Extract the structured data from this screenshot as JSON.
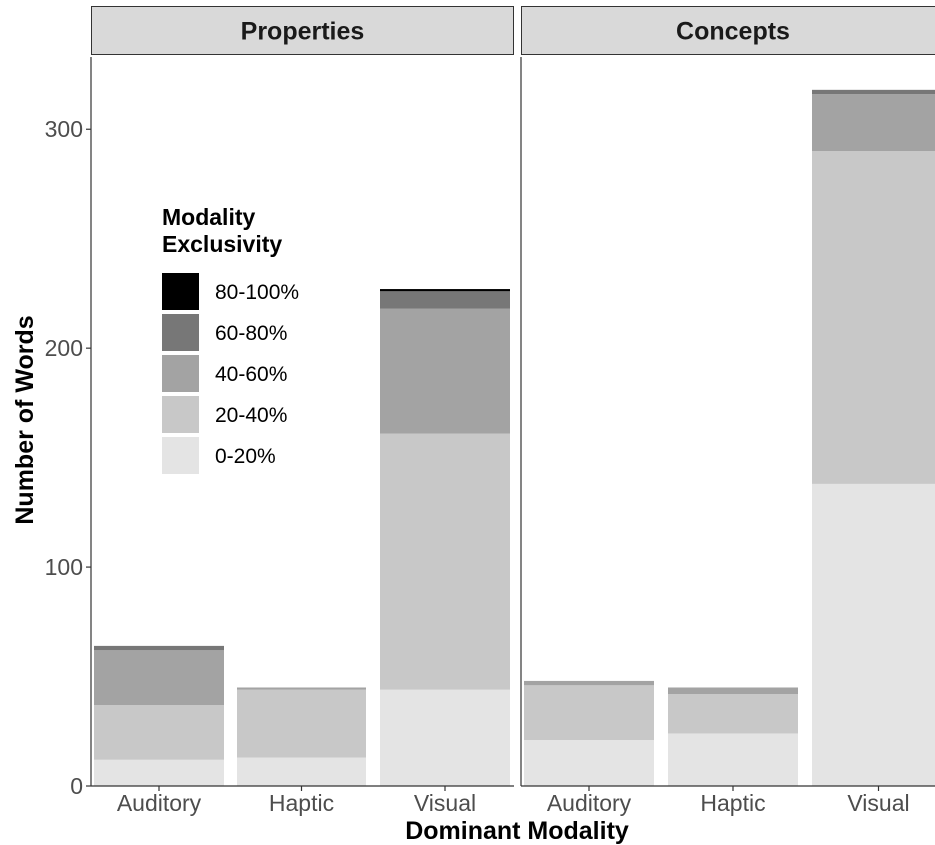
{
  "chart_data": {
    "type": "bar",
    "stacked": true,
    "xlabel": "Dominant Modality",
    "ylabel": "Number of Words",
    "ylim": [
      0,
      333
    ],
    "yticks": [
      0,
      100,
      200,
      300
    ],
    "grid": false,
    "legend": {
      "title_lines": [
        "Modality",
        "Exclusivity"
      ],
      "placement": "inside-top-left",
      "entries": [
        "80-100%",
        "60-80%",
        "40-60%",
        "20-40%",
        "0-20%"
      ]
    },
    "series": [
      {
        "name": "0-20%",
        "color": "#e4e4e4"
      },
      {
        "name": "20-40%",
        "color": "#c8c8c8"
      },
      {
        "name": "40-60%",
        "color": "#a3a3a3"
      },
      {
        "name": "60-80%",
        "color": "#777777"
      },
      {
        "name": "80-100%",
        "color": "#000000"
      }
    ],
    "panels": [
      {
        "title": "Properties",
        "categories": [
          "Auditory",
          "Haptic",
          "Visual"
        ],
        "values": {
          "0-20%": [
            12,
            13,
            44
          ],
          "20-40%": [
            25,
            31,
            117
          ],
          "40-60%": [
            25,
            1,
            57
          ],
          "60-80%": [
            2,
            0,
            8
          ],
          "80-100%": [
            0,
            0,
            1
          ]
        }
      },
      {
        "title": "Concepts",
        "categories": [
          "Auditory",
          "Haptic",
          "Visual"
        ],
        "values": {
          "0-20%": [
            21,
            24,
            138
          ],
          "20-40%": [
            25,
            18,
            152
          ],
          "40-60%": [
            2,
            3,
            26
          ],
          "60-80%": [
            0,
            0,
            2
          ],
          "80-100%": [
            0,
            0,
            0
          ]
        }
      }
    ]
  }
}
